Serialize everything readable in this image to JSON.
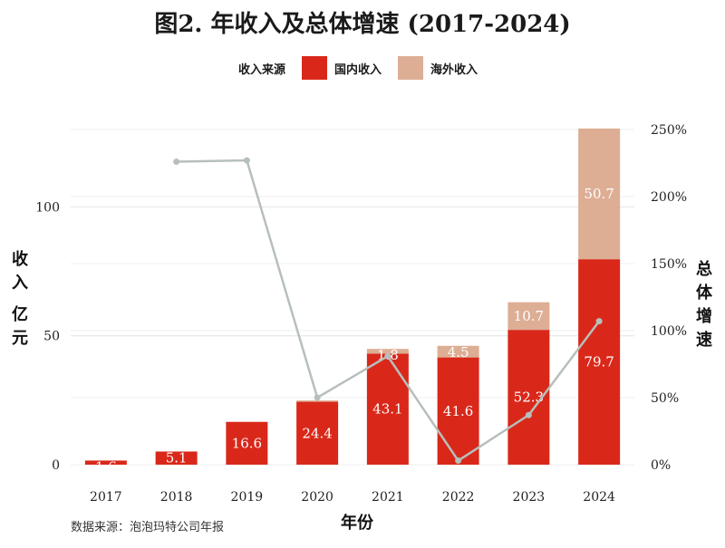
{
  "chart_data": {
    "type": "bar",
    "title": "图2. 年收入及总体增速 (2017-2024)",
    "source": "数据来源：泡泡玛特公司年报",
    "xlabel": "年份",
    "ylabel": "收入 亿元",
    "y2label": "总体增速",
    "legend_title": "收入来源",
    "categories": [
      "2017",
      "2018",
      "2019",
      "2020",
      "2021",
      "2022",
      "2023",
      "2024"
    ],
    "series": [
      {
        "name": "国内收入",
        "color": "#d9281a",
        "values": [
          1.6,
          5.1,
          16.6,
          24.4,
          43.1,
          41.6,
          52.3,
          79.7
        ],
        "labels": [
          "1.6",
          "5.1",
          "16.6",
          "24.4",
          "43.1",
          "41.6",
          "52.3",
          "79.7"
        ]
      },
      {
        "name": "海外收入",
        "color": "#ddae94",
        "values": [
          0,
          0,
          0,
          0.5,
          1.8,
          4.5,
          10.7,
          50.7
        ],
        "labels": [
          "",
          "",
          "",
          "",
          "1.8",
          "4.5",
          "10.7",
          "50.7"
        ]
      }
    ],
    "growth_line": {
      "name": "总体增速",
      "color": "#b7bfbb",
      "values": [
        null,
        226,
        227,
        50,
        81,
        3,
        37,
        107
      ]
    },
    "ylim": [
      0,
      130
    ],
    "yticks": [
      0,
      50,
      100
    ],
    "y2lim": [
      0,
      250
    ],
    "y2ticks": [
      "0%",
      "50%",
      "100%",
      "150%",
      "200%",
      "250%"
    ],
    "grid": true,
    "legend_position": "top-center"
  }
}
